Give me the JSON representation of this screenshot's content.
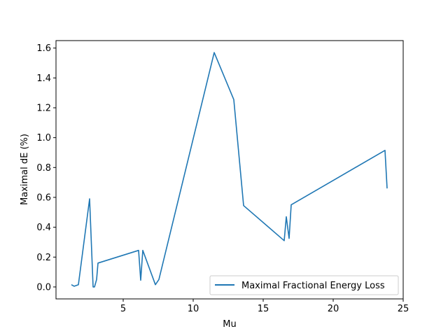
{
  "chart_data": {
    "type": "line",
    "title": "",
    "xlabel": "Mu",
    "ylabel": "Maximal dE (%)",
    "xlim": [
      0.2,
      25
    ],
    "ylim": [
      -0.08,
      1.65
    ],
    "xticks": [
      5,
      10,
      15,
      20,
      25
    ],
    "yticks": [
      0.0,
      0.2,
      0.4,
      0.6,
      0.8,
      1.0,
      1.2,
      1.4,
      1.6
    ],
    "xtick_labels": [
      "5",
      "10",
      "15",
      "20",
      "25"
    ],
    "ytick_labels": [
      "0.0",
      "0.2",
      "0.4",
      "0.6",
      "0.8",
      "1.0",
      "1.2",
      "1.4",
      "1.6"
    ],
    "grid": false,
    "legend_position": "lower right",
    "series": [
      {
        "name": "Maximal Fractional Energy Loss",
        "color": "#1f77b4",
        "x": [
          1.3,
          1.5,
          1.8,
          2.6,
          2.85,
          2.95,
          3.1,
          3.2,
          6.1,
          6.25,
          6.4,
          7.3,
          7.55,
          11.5,
          12.9,
          13.6,
          16.5,
          16.65,
          16.85,
          17.0,
          23.7,
          23.85
        ],
        "y": [
          0.015,
          0.005,
          0.015,
          0.59,
          0.0,
          0.0,
          0.05,
          0.16,
          0.245,
          0.045,
          0.245,
          0.015,
          0.05,
          1.57,
          1.255,
          0.545,
          0.31,
          0.47,
          0.325,
          0.55,
          0.915,
          0.66
        ]
      }
    ]
  }
}
